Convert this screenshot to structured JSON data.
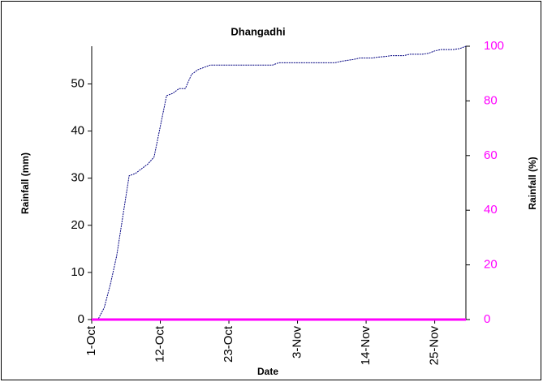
{
  "chart_data": {
    "type": "line",
    "title": "Dhangadhi",
    "xlabel": "Date",
    "ylabel": "Rainfall (mm)",
    "y2label": "Rainfall (%)",
    "categories": [
      "1-Oct",
      null,
      null,
      null,
      null,
      null,
      null,
      null,
      null,
      null,
      null,
      "12-Oct",
      null,
      null,
      null,
      null,
      null,
      null,
      null,
      null,
      null,
      null,
      "23-Oct",
      null,
      null,
      null,
      null,
      null,
      null,
      null,
      null,
      null,
      null,
      "3-Nov",
      null,
      null,
      null,
      null,
      null,
      null,
      null,
      null,
      null,
      null,
      "14-Nov",
      null,
      null,
      null,
      null,
      null,
      null,
      null,
      null,
      null,
      null,
      "25-Nov",
      null,
      null,
      null,
      null,
      null
    ],
    "series": [
      {
        "name": "Rainfall (mm)",
        "color": "#000080",
        "values": [
          0,
          0,
          2.5,
          7.5,
          13.5,
          22,
          30.5,
          31,
          32,
          33,
          34.5,
          41,
          47.5,
          48,
          49,
          49,
          52,
          53,
          53.5,
          54,
          54,
          54,
          54,
          54,
          54,
          54,
          54,
          54,
          54,
          54,
          54.5,
          54.5,
          54.5,
          54.5,
          54.5,
          54.5,
          54.5,
          54.5,
          54.5,
          54.5,
          54.8,
          55,
          55.2,
          55.5,
          55.5,
          55.5,
          55.7,
          55.8,
          56,
          56,
          56,
          56.3,
          56.3,
          56.3,
          56.5,
          57,
          57.3,
          57.3,
          57.3,
          57.5,
          58
        ]
      },
      {
        "name": "Rainfall (%)",
        "color": "#ff00ff",
        "axis": "y2",
        "values": [
          0,
          0,
          0,
          0,
          0,
          0,
          0,
          0,
          0,
          0,
          0,
          0,
          0,
          0,
          0,
          0,
          0,
          0,
          0,
          0,
          0,
          0,
          0,
          0,
          0,
          0,
          0,
          0,
          0,
          0,
          0,
          0,
          0,
          0,
          0,
          0,
          0,
          0,
          0,
          0,
          0,
          0,
          0,
          0,
          0,
          0,
          0,
          0,
          0,
          0,
          0,
          0,
          0,
          0,
          0,
          0,
          0,
          0,
          0,
          0,
          0
        ]
      }
    ],
    "ylim": [
      0,
      58
    ],
    "yticks": [
      0,
      10,
      20,
      30,
      40,
      50
    ],
    "y2lim": [
      0,
      100
    ],
    "y2ticks": [
      0,
      20,
      40,
      60,
      80,
      100
    ]
  }
}
